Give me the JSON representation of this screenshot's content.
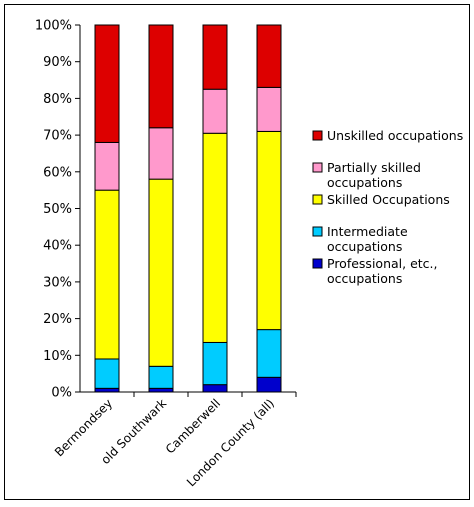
{
  "chart_data": {
    "type": "bar",
    "stacked": true,
    "categories": [
      "Bermondsey",
      "old Southwark",
      "Camberwell",
      "London County (all)"
    ],
    "series": [
      {
        "name": "Professional, etc., occupations",
        "color": "#0000cc",
        "values": [
          1,
          1,
          2,
          4
        ]
      },
      {
        "name": "Intermediate occupations",
        "color": "#00ccff",
        "values": [
          8,
          6,
          11.5,
          13
        ]
      },
      {
        "name": "Skilled Occupations",
        "color": "#ffff00",
        "values": [
          46,
          51,
          57,
          54
        ]
      },
      {
        "name": "Partially skilled occupations",
        "color": "#ff99cc",
        "values": [
          13,
          14,
          12,
          12
        ]
      },
      {
        "name": "Unskilled occupations",
        "color": "#dd0000",
        "values": [
          32,
          28,
          17.5,
          17
        ]
      }
    ],
    "legend_order": [
      "Unskilled occupations",
      "Partially skilled occupations",
      "Skilled Occupations",
      "Intermediate occupations",
      "Professional, etc., occupations"
    ],
    "legend_lines": {
      "Unskilled occupations": [
        "Unskilled occupations"
      ],
      "Partially skilled occupations": [
        "Partially skilled",
        "occupations"
      ],
      "Skilled Occupations": [
        "Skilled Occupations"
      ],
      "Intermediate occupations": [
        "Intermediate",
        "occupations"
      ],
      "Professional, etc., occupations": [
        "Professional, etc.,",
        "occupations"
      ]
    },
    "y_ticks": [
      "0%",
      "10%",
      "20%",
      "30%",
      "40%",
      "50%",
      "60%",
      "70%",
      "80%",
      "90%",
      "100%"
    ],
    "ylim": [
      0,
      100
    ],
    "grid": false,
    "legend_position": "right"
  }
}
